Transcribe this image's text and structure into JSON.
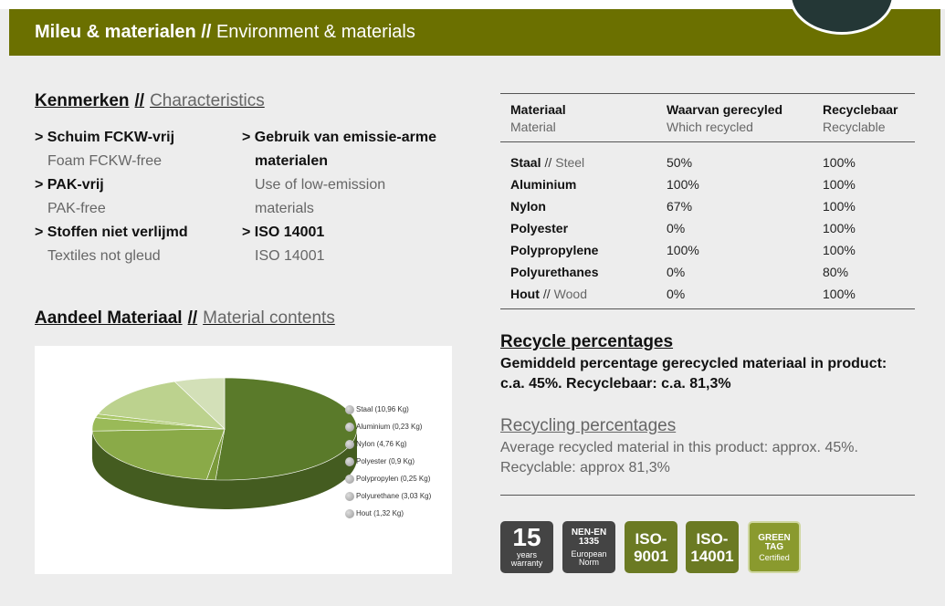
{
  "header": {
    "title_nl": "Mileu & materialen",
    "sep": "//",
    "title_en": "Environment & materials"
  },
  "characteristics": {
    "heading_nl": "Kenmerken",
    "sep": "//",
    "heading_en": "Characteristics",
    "left": [
      {
        "nl": "> Schuim FCKW-vrij",
        "en": "Foam FCKW-free"
      },
      {
        "nl": "> PAK-vrij",
        "en": "PAK-free"
      },
      {
        "nl": "> Stoffen niet verlijmd",
        "en": "Textiles not gleud"
      }
    ],
    "right": [
      {
        "nl1": "> Gebruik van emissie-arme",
        "nl2": "materialen",
        "en1": "Use of low-emission",
        "en2": "materials"
      },
      {
        "nl": "> ISO 14001",
        "en": "ISO 14001"
      }
    ]
  },
  "material_contents": {
    "heading_nl": "Aandeel Materiaal",
    "sep": "//",
    "heading_en": "Material contents",
    "legend": [
      "Staal (10,96 Kg)",
      "Aluminium (0,23 Kg)",
      "Nylon (4,76 Kg)",
      "Polyester (0,9 Kg)",
      "Polypropylen (0,25 Kg)",
      "Polyurethane (3,03 Kg)",
      "Hout (1,32 Kg)"
    ]
  },
  "chart_data": {
    "type": "pie",
    "categories": [
      "Staal",
      "Aluminium",
      "Nylon",
      "Polyester",
      "Polypropylen",
      "Polyurethane",
      "Hout"
    ],
    "values": [
      10.96,
      0.23,
      4.76,
      0.9,
      0.25,
      3.03,
      1.32
    ],
    "unit": "Kg",
    "colors": [
      "#5a7a2a",
      "#7a9a3a",
      "#8aaa48",
      "#9aba58",
      "#aac868",
      "#bcd28e",
      "#d3e0b8"
    ],
    "legend": "right"
  },
  "materials_table": {
    "headers": [
      {
        "nl": "Materiaal",
        "en": "Material"
      },
      {
        "nl": "Waarvan gerecyled",
        "en": "Which recycled"
      },
      {
        "nl": "Recyclebaar",
        "en": "Recyclable"
      }
    ],
    "rows": [
      {
        "name": "Staal",
        "sep": "//",
        "en": "Steel",
        "recycled": "50%",
        "recyclable": "100%"
      },
      {
        "name": "Aluminium",
        "recycled": "100%",
        "recyclable": "100%"
      },
      {
        "name": "Nylon",
        "recycled": "67%",
        "recyclable": "100%"
      },
      {
        "name": "Polyester",
        "recycled": "0%",
        "recyclable": "100%"
      },
      {
        "name": "Polypropylene",
        "recycled": "100%",
        "recyclable": "100%"
      },
      {
        "name": "Polyurethanes",
        "recycled": "0%",
        "recyclable": "80%"
      },
      {
        "name": "Hout",
        "sep": "//",
        "en": "Wood",
        "recycled": "0%",
        "recyclable": "100%"
      }
    ]
  },
  "recycle": {
    "heading_nl": "Recycle percentages",
    "text_nl": "Gemiddeld percentage gerecycled materiaal in product: c.a. 45%. Recyclebaar: c.a. 81,3%",
    "heading_en": "Recycling percentages",
    "text_en": "Average recycled material in this product: approx. 45%. Recyclable: approx 81,3%"
  },
  "badges": {
    "warranty": {
      "number": "15",
      "line1": "years",
      "line2": "warranty",
      "color": "#444444"
    },
    "nen": {
      "line1": "NEN-EN",
      "line2": "1335",
      "line3": "European",
      "line4": "Norm",
      "color": "#444444"
    },
    "iso9001": {
      "line1": "ISO-",
      "line2": "9001",
      "color": "#6b7a23"
    },
    "iso14001": {
      "line1": "ISO-",
      "line2": "14001",
      "color": "#6b7a23"
    },
    "greentag": {
      "line1": "GREEN",
      "line2": "TAG",
      "line3": "Certified",
      "color": "#8a9a2e"
    }
  },
  "colors": {
    "header_bg": "#6b7000",
    "accent_green": "#6b7a23"
  }
}
